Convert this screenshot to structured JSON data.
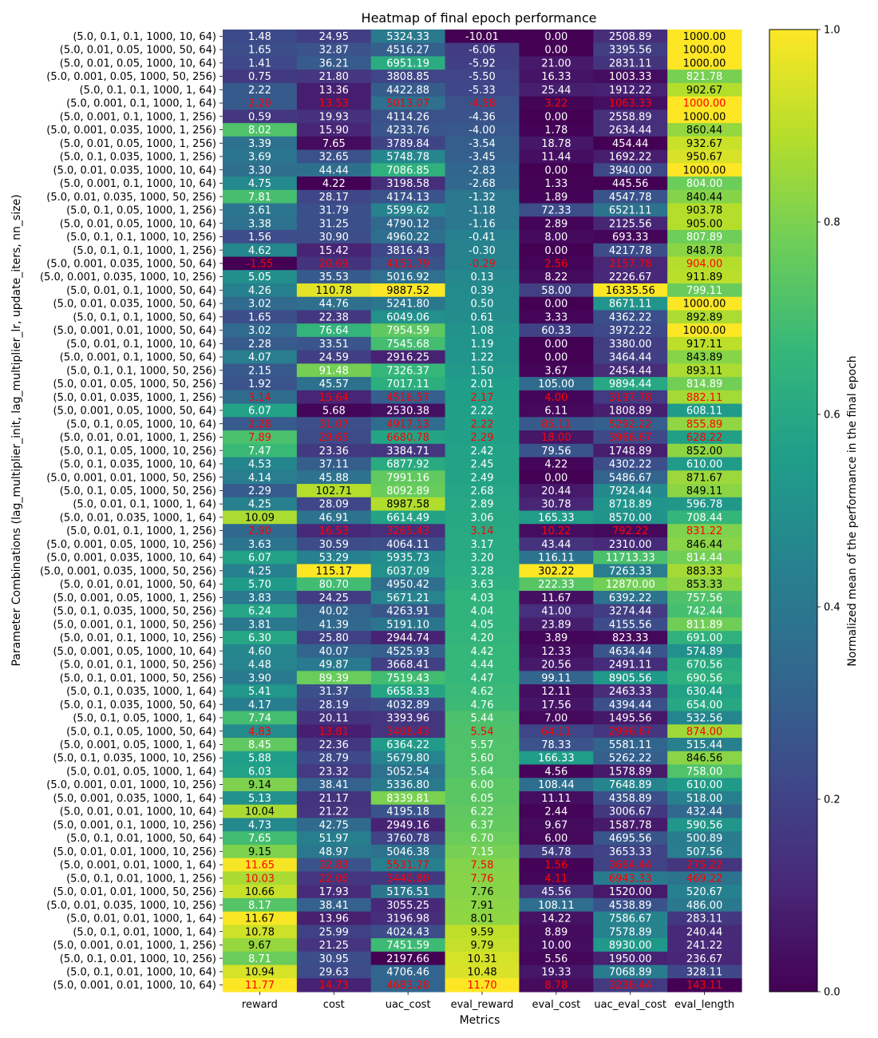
{
  "chart_data": {
    "type": "heatmap",
    "title": "Heatmap of final epoch performance",
    "xlabel": "Metrics",
    "ylabel": "Parameter Combinations (lag_multiplier_init, lag_multiplier_lr, update_iters, nn_size)",
    "colorbar_label": "Normalized mean of the performance in the final epoch",
    "colorbar_ticks": [
      "0.0",
      "0.2",
      "0.4",
      "0.6",
      "0.8",
      "1.0"
    ],
    "colormap": [
      "#440154",
      "#482878",
      "#3e4989",
      "#31688e",
      "#26828e",
      "#1f9e89",
      "#35b779",
      "#6ece58",
      "#b5de2b",
      "#fde725"
    ],
    "columns": [
      "reward",
      "cost",
      "uac_cost",
      "eval_reward",
      "eval_cost",
      "uac_eval_cost",
      "eval_length"
    ],
    "highlight_color": "#ff0000",
    "rows": [
      {
        "label": "(5.0, 0.1, 0.1, 1000, 10, 64)",
        "values": [
          "1.48",
          "24.95",
          "5324.33",
          "-10.01",
          "0.00",
          "2508.89",
          "1000.00"
        ],
        "highlight": false
      },
      {
        "label": "(5.0, 0.01, 0.05, 1000, 50, 64)",
        "values": [
          "1.65",
          "32.87",
          "4516.27",
          "-6.06",
          "0.00",
          "3395.56",
          "1000.00"
        ],
        "highlight": false
      },
      {
        "label": "(5.0, 0.01, 0.05, 1000, 10, 64)",
        "values": [
          "1.41",
          "36.21",
          "6951.19",
          "-5.92",
          "21.00",
          "2831.11",
          "1000.00"
        ],
        "highlight": false
      },
      {
        "label": "(5.0, 0.001, 0.05, 1000, 50, 256)",
        "values": [
          "0.75",
          "21.80",
          "3808.85",
          "-5.50",
          "16.33",
          "1003.33",
          "821.78"
        ],
        "highlight": false
      },
      {
        "label": "(5.0, 0.1, 0.1, 1000, 1, 64)",
        "values": [
          "2.22",
          "13.36",
          "4422.88",
          "-5.33",
          "25.44",
          "1912.22",
          "902.67"
        ],
        "highlight": false
      },
      {
        "label": "(5.0, 0.001, 0.1, 1000, 1, 64)",
        "values": [
          "2.20",
          "13.53",
          "5013.07",
          "-4.58",
          "3.22",
          "1063.33",
          "1000.00"
        ],
        "highlight": true
      },
      {
        "label": "(5.0, 0.001, 0.1, 1000, 1, 256)",
        "values": [
          "0.59",
          "19.93",
          "4114.26",
          "-4.36",
          "0.00",
          "2558.89",
          "1000.00"
        ],
        "highlight": false
      },
      {
        "label": "(5.0, 0.001, 0.035, 1000, 1, 256)",
        "values": [
          "8.02",
          "15.90",
          "4233.76",
          "-4.00",
          "1.78",
          "2634.44",
          "860.44"
        ],
        "highlight": false
      },
      {
        "label": "(5.0, 0.01, 0.05, 1000, 1, 256)",
        "values": [
          "3.39",
          "7.65",
          "3789.84",
          "-3.54",
          "18.78",
          "454.44",
          "932.67"
        ],
        "highlight": false
      },
      {
        "label": "(5.0, 0.1, 0.035, 1000, 1, 256)",
        "values": [
          "3.69",
          "32.65",
          "5748.78",
          "-3.45",
          "11.44",
          "1692.22",
          "950.67"
        ],
        "highlight": false
      },
      {
        "label": "(5.0, 0.01, 0.035, 1000, 10, 64)",
        "values": [
          "3.30",
          "44.44",
          "7086.85",
          "-2.83",
          "0.00",
          "3940.00",
          "1000.00"
        ],
        "highlight": false
      },
      {
        "label": "(5.0, 0.001, 0.1, 1000, 10, 64)",
        "values": [
          "4.75",
          "4.22",
          "3198.58",
          "-2.68",
          "1.33",
          "445.56",
          "804.00"
        ],
        "highlight": false
      },
      {
        "label": "(5.0, 0.01, 0.035, 1000, 50, 256)",
        "values": [
          "7.81",
          "28.17",
          "4174.13",
          "-1.32",
          "1.89",
          "4547.78",
          "840.44"
        ],
        "highlight": false
      },
      {
        "label": "(5.0, 0.1, 0.05, 1000, 1, 256)",
        "values": [
          "3.61",
          "31.79",
          "5599.62",
          "-1.18",
          "72.33",
          "6521.11",
          "903.78"
        ],
        "highlight": false
      },
      {
        "label": "(5.0, 0.01, 0.05, 1000, 10, 64)",
        "values": [
          "3.38",
          "31.25",
          "4790.12",
          "-1.16",
          "2.89",
          "2125.56",
          "905.00"
        ],
        "highlight": false
      },
      {
        "label": "(5.0, 0.1, 0.1, 1000, 10, 256)",
        "values": [
          "1.56",
          "30.90",
          "4960.22",
          "-0.41",
          "8.00",
          "693.33",
          "807.89"
        ],
        "highlight": false
      },
      {
        "label": "(5.0, 0.1, 0.1, 1000, 1, 256)",
        "values": [
          "4.62",
          "15.42",
          "3816.43",
          "-0.30",
          "0.00",
          "4217.78",
          "848.78"
        ],
        "highlight": false
      },
      {
        "label": "(5.0, 0.001, 0.035, 1000, 50, 64)",
        "values": [
          "-1.55",
          "20.69",
          "4151.79",
          "-0.29",
          "2.56",
          "2157.78",
          "904.00"
        ],
        "highlight": true
      },
      {
        "label": "(5.0, 0.001, 0.035, 1000, 10, 256)",
        "values": [
          "5.05",
          "35.53",
          "5016.92",
          "0.13",
          "8.22",
          "2226.67",
          "911.89"
        ],
        "highlight": false
      },
      {
        "label": "(5.0, 0.01, 0.1, 1000, 50, 64)",
        "values": [
          "4.26",
          "110.78",
          "9887.52",
          "0.39",
          "58.00",
          "16335.56",
          "799.11"
        ],
        "highlight": false
      },
      {
        "label": "(5.0, 0.01, 0.035, 1000, 50, 64)",
        "values": [
          "3.02",
          "44.76",
          "5241.80",
          "0.50",
          "0.00",
          "8671.11",
          "1000.00"
        ],
        "highlight": false
      },
      {
        "label": "(5.0, 0.1, 0.1, 1000, 50, 64)",
        "values": [
          "1.65",
          "22.38",
          "6049.06",
          "0.61",
          "3.33",
          "4362.22",
          "892.89"
        ],
        "highlight": false
      },
      {
        "label": "(5.0, 0.001, 0.01, 1000, 50, 64)",
        "values": [
          "3.02",
          "76.64",
          "7954.59",
          "1.08",
          "60.33",
          "3972.22",
          "1000.00"
        ],
        "highlight": false
      },
      {
        "label": "(5.0, 0.01, 0.1, 1000, 10, 64)",
        "values": [
          "2.28",
          "33.51",
          "7545.68",
          "1.19",
          "0.00",
          "3380.00",
          "917.11"
        ],
        "highlight": false
      },
      {
        "label": "(5.0, 0.001, 0.1, 1000, 50, 64)",
        "values": [
          "4.07",
          "24.59",
          "2916.25",
          "1.22",
          "0.00",
          "3464.44",
          "843.89"
        ],
        "highlight": false
      },
      {
        "label": "(5.0, 0.1, 0.1, 1000, 50, 256)",
        "values": [
          "2.15",
          "91.48",
          "7326.37",
          "1.50",
          "3.67",
          "2454.44",
          "893.11"
        ],
        "highlight": false
      },
      {
        "label": "(5.0, 0.01, 0.05, 1000, 50, 256)",
        "values": [
          "1.92",
          "45.57",
          "7017.11",
          "2.01",
          "105.00",
          "9894.44",
          "814.89"
        ],
        "highlight": false
      },
      {
        "label": "(5.0, 0.01, 0.035, 1000, 1, 256)",
        "values": [
          "3.14",
          "15.64",
          "4516.57",
          "2.17",
          "4.00",
          "3197.78",
          "882.11"
        ],
        "highlight": true
      },
      {
        "label": "(5.0, 0.001, 0.05, 1000, 50, 64)",
        "values": [
          "6.07",
          "5.68",
          "2530.38",
          "2.22",
          "6.11",
          "1808.89",
          "608.11"
        ],
        "highlight": false
      },
      {
        "label": "(5.0, 0.1, 0.05, 1000, 10, 64)",
        "values": [
          "2.28",
          "31.07",
          "4917.13",
          "2.22",
          "85.11",
          "5292.22",
          "855.89"
        ],
        "highlight": true
      },
      {
        "label": "(5.0, 0.01, 0.01, 1000, 1, 256)",
        "values": [
          "7.89",
          "29.65",
          "6680.78",
          "2.29",
          "18.00",
          "3966.67",
          "628.22"
        ],
        "highlight": true
      },
      {
        "label": "(5.0, 0.1, 0.05, 1000, 10, 256)",
        "values": [
          "7.47",
          "23.36",
          "3384.71",
          "2.42",
          "79.56",
          "1748.89",
          "852.00"
        ],
        "highlight": false
      },
      {
        "label": "(5.0, 0.1, 0.035, 1000, 10, 64)",
        "values": [
          "4.53",
          "37.11",
          "6877.92",
          "2.45",
          "4.22",
          "4302.22",
          "610.00"
        ],
        "highlight": false
      },
      {
        "label": "(5.0, 0.001, 0.01, 1000, 50, 256)",
        "values": [
          "4.14",
          "45.88",
          "7991.16",
          "2.49",
          "0.00",
          "5486.67",
          "871.67"
        ],
        "highlight": false
      },
      {
        "label": "(5.0, 0.1, 0.05, 1000, 50, 256)",
        "values": [
          "2.29",
          "102.71",
          "8092.89",
          "2.68",
          "20.44",
          "7924.44",
          "849.11"
        ],
        "highlight": false
      },
      {
        "label": "(5.0, 0.01, 0.1, 1000, 1, 64)",
        "values": [
          "4.25",
          "28.09",
          "8987.58",
          "2.89",
          "30.78",
          "8718.89",
          "596.78"
        ],
        "highlight": false
      },
      {
        "label": "(5.0, 0.01, 0.035, 1000, 1, 64)",
        "values": [
          "10.09",
          "46.91",
          "6614.49",
          "3.06",
          "165.33",
          "8570.00",
          "708.44"
        ],
        "highlight": false
      },
      {
        "label": "(5.0, 0.01, 0.1, 1000, 1, 256)",
        "values": [
          "2.90",
          "16.53",
          "3265.43",
          "3.14",
          "10.22",
          "792.22",
          "831.22"
        ],
        "highlight": true
      },
      {
        "label": "(5.0, 0.001, 0.05, 1000, 10, 256)",
        "values": [
          "3.63",
          "30.59",
          "4064.11",
          "3.17",
          "43.44",
          "2310.00",
          "846.44"
        ],
        "highlight": false
      },
      {
        "label": "(5.0, 0.001, 0.035, 1000, 10, 64)",
        "values": [
          "6.07",
          "53.29",
          "5935.73",
          "3.20",
          "116.11",
          "11713.33",
          "814.44"
        ],
        "highlight": false
      },
      {
        "label": "(5.0, 0.001, 0.035, 1000, 50, 256)",
        "values": [
          "4.25",
          "115.17",
          "6037.09",
          "3.28",
          "302.22",
          "7263.33",
          "883.33"
        ],
        "highlight": false
      },
      {
        "label": "(5.0, 0.01, 0.01, 1000, 50, 64)",
        "values": [
          "5.70",
          "80.70",
          "4950.42",
          "3.63",
          "222.33",
          "12870.00",
          "853.33"
        ],
        "highlight": false
      },
      {
        "label": "(5.0, 0.001, 0.05, 1000, 1, 256)",
        "values": [
          "3.83",
          "24.25",
          "5671.21",
          "4.03",
          "11.67",
          "6392.22",
          "757.56"
        ],
        "highlight": false
      },
      {
        "label": "(5.0, 0.1, 0.035, 1000, 50, 256)",
        "values": [
          "6.24",
          "40.02",
          "4263.91",
          "4.04",
          "41.00",
          "3274.44",
          "742.44"
        ],
        "highlight": false
      },
      {
        "label": "(5.0, 0.001, 0.1, 1000, 50, 256)",
        "values": [
          "3.81",
          "41.39",
          "5191.10",
          "4.05",
          "23.89",
          "4155.56",
          "811.89"
        ],
        "highlight": false
      },
      {
        "label": "(5.0, 0.01, 0.1, 1000, 10, 256)",
        "values": [
          "6.30",
          "25.80",
          "2944.74",
          "4.20",
          "3.89",
          "823.33",
          "691.00"
        ],
        "highlight": false
      },
      {
        "label": "(5.0, 0.001, 0.05, 1000, 10, 64)",
        "values": [
          "4.60",
          "40.07",
          "4525.93",
          "4.42",
          "12.33",
          "4634.44",
          "574.89"
        ],
        "highlight": false
      },
      {
        "label": "(5.0, 0.01, 0.1, 1000, 50, 256)",
        "values": [
          "4.48",
          "49.87",
          "3668.41",
          "4.44",
          "20.56",
          "2491.11",
          "670.56"
        ],
        "highlight": false
      },
      {
        "label": "(5.0, 0.1, 0.01, 1000, 50, 256)",
        "values": [
          "3.90",
          "89.39",
          "7519.43",
          "4.47",
          "99.11",
          "8905.56",
          "690.56"
        ],
        "highlight": false
      },
      {
        "label": "(5.0, 0.1, 0.035, 1000, 1, 64)",
        "values": [
          "5.41",
          "31.37",
          "6658.33",
          "4.62",
          "12.11",
          "2463.33",
          "630.44"
        ],
        "highlight": false
      },
      {
        "label": "(5.0, 0.1, 0.035, 1000, 50, 64)",
        "values": [
          "4.17",
          "28.19",
          "4032.89",
          "4.76",
          "17.56",
          "4394.44",
          "654.00"
        ],
        "highlight": false
      },
      {
        "label": "(5.0, 0.1, 0.05, 1000, 1, 64)",
        "values": [
          "7.74",
          "20.11",
          "3393.96",
          "5.44",
          "7.00",
          "1495.56",
          "532.56"
        ],
        "highlight": false
      },
      {
        "label": "(5.0, 0.1, 0.05, 1000, 50, 64)",
        "values": [
          "4.83",
          "13.81",
          "3408.43",
          "5.54",
          "64.11",
          "2996.67",
          "874.00"
        ],
        "highlight": true
      },
      {
        "label": "(5.0, 0.001, 0.05, 1000, 1, 64)",
        "values": [
          "8.45",
          "22.36",
          "6364.22",
          "5.57",
          "78.33",
          "5581.11",
          "515.44"
        ],
        "highlight": false
      },
      {
        "label": "(5.0, 0.1, 0.035, 1000, 10, 256)",
        "values": [
          "5.88",
          "28.79",
          "5679.80",
          "5.60",
          "166.33",
          "5262.22",
          "846.56"
        ],
        "highlight": false
      },
      {
        "label": "(5.0, 0.01, 0.05, 1000, 1, 64)",
        "values": [
          "6.03",
          "23.32",
          "5052.54",
          "5.64",
          "4.56",
          "1578.89",
          "758.00"
        ],
        "highlight": false
      },
      {
        "label": "(5.0, 0.001, 0.01, 1000, 10, 256)",
        "values": [
          "9.14",
          "38.41",
          "5336.80",
          "6.00",
          "108.44",
          "7648.89",
          "610.00"
        ],
        "highlight": false
      },
      {
        "label": "(5.0, 0.001, 0.035, 1000, 1, 64)",
        "values": [
          "5.13",
          "21.17",
          "8339.81",
          "6.05",
          "11.11",
          "4358.89",
          "518.00"
        ],
        "highlight": false
      },
      {
        "label": "(5.0, 0.01, 0.01, 1000, 10, 64)",
        "values": [
          "10.04",
          "21.22",
          "4195.18",
          "6.22",
          "2.44",
          "3006.67",
          "432.44"
        ],
        "highlight": false
      },
      {
        "label": "(5.0, 0.001, 0.1, 1000, 10, 256)",
        "values": [
          "4.73",
          "42.75",
          "2949.16",
          "6.37",
          "9.67",
          "1587.78",
          "590.56"
        ],
        "highlight": false
      },
      {
        "label": "(5.0, 0.1, 0.01, 1000, 50, 64)",
        "values": [
          "7.65",
          "51.97",
          "3760.78",
          "6.70",
          "6.00",
          "4695.56",
          "500.89"
        ],
        "highlight": false
      },
      {
        "label": "(5.0, 0.01, 0.01, 1000, 10, 256)",
        "values": [
          "9.15",
          "48.97",
          "5046.38",
          "7.15",
          "54.78",
          "3653.33",
          "507.56"
        ],
        "highlight": false
      },
      {
        "label": "(5.0, 0.001, 0.01, 1000, 1, 64)",
        "values": [
          "11.65",
          "32.83",
          "5531.77",
          "7.58",
          "1.56",
          "3664.44",
          "275.22"
        ],
        "highlight": true
      },
      {
        "label": "(5.0, 0.1, 0.01, 1000, 1, 256)",
        "values": [
          "10.03",
          "22.06",
          "3440.80",
          "7.76",
          "4.11",
          "6943.33",
          "469.22"
        ],
        "highlight": true
      },
      {
        "label": "(5.0, 0.01, 0.01, 1000, 50, 256)",
        "values": [
          "10.66",
          "17.93",
          "5176.51",
          "7.76",
          "45.56",
          "1520.00",
          "520.67"
        ],
        "highlight": false
      },
      {
        "label": "(5.0, 0.01, 0.035, 1000, 10, 256)",
        "values": [
          "8.17",
          "38.41",
          "3055.25",
          "7.91",
          "108.11",
          "4538.89",
          "486.00"
        ],
        "highlight": false
      },
      {
        "label": "(5.0, 0.01, 0.01, 1000, 1, 64)",
        "values": [
          "11.67",
          "13.96",
          "3196.98",
          "8.01",
          "14.22",
          "7586.67",
          "283.11"
        ],
        "highlight": false
      },
      {
        "label": "(5.0, 0.1, 0.01, 1000, 1, 64)",
        "values": [
          "10.78",
          "25.99",
          "4024.43",
          "9.59",
          "8.89",
          "7578.89",
          "240.44"
        ],
        "highlight": false
      },
      {
        "label": "(5.0, 0.001, 0.01, 1000, 1, 256)",
        "values": [
          "9.67",
          "21.25",
          "7451.59",
          "9.79",
          "10.00",
          "8930.00",
          "241.22"
        ],
        "highlight": false
      },
      {
        "label": "(5.0, 0.1, 0.01, 1000, 10, 256)",
        "values": [
          "8.71",
          "30.95",
          "2197.66",
          "10.31",
          "5.56",
          "1950.00",
          "236.67"
        ],
        "highlight": false
      },
      {
        "label": "(5.0, 0.1, 0.01, 1000, 10, 64)",
        "values": [
          "10.94",
          "29.63",
          "4706.46",
          "10.48",
          "19.33",
          "7068.89",
          "328.11"
        ],
        "highlight": false
      },
      {
        "label": "(5.0, 0.001, 0.01, 1000, 10, 64)",
        "values": [
          "11.77",
          "14.73",
          "4683.28",
          "11.70",
          "8.78",
          "3236.44",
          "143.11"
        ],
        "highlight": true
      }
    ]
  }
}
